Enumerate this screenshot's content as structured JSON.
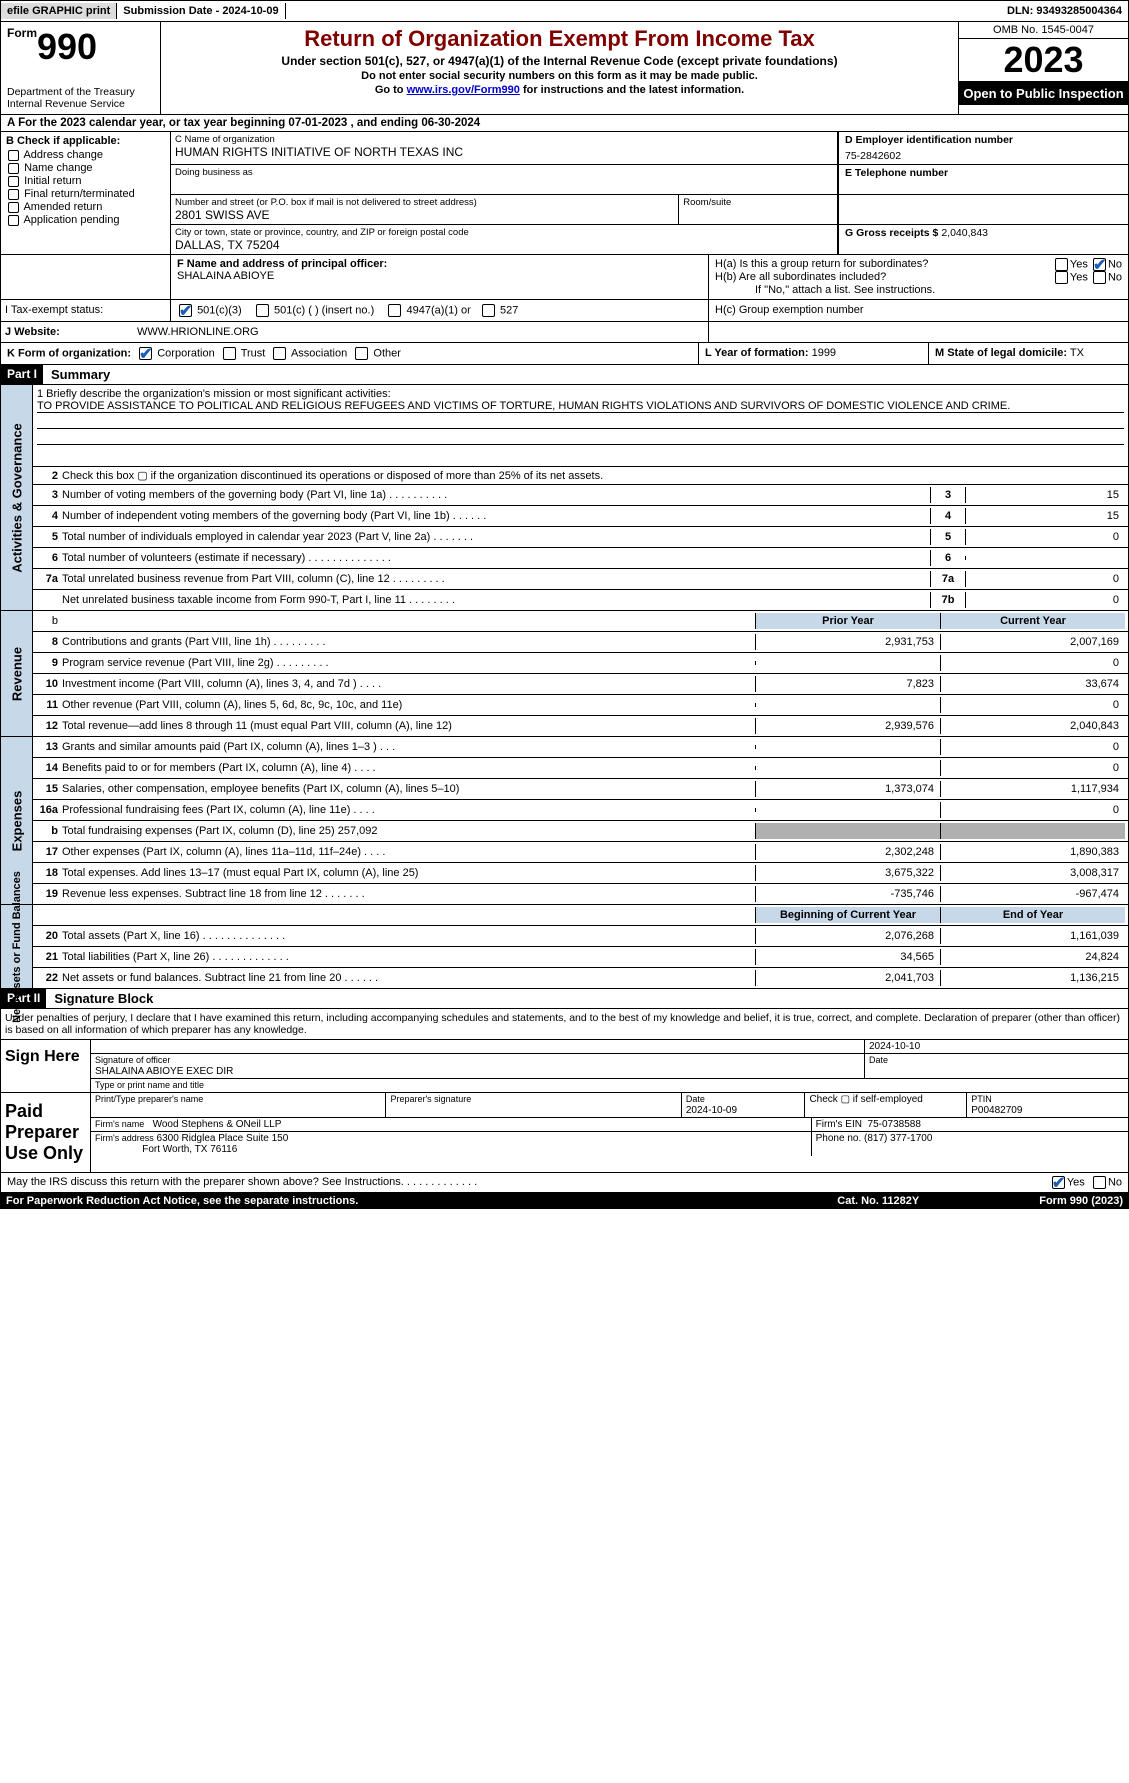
{
  "topbar": {
    "efile": "efile GRAPHIC print",
    "submission_label": "Submission Date - 2024-10-09",
    "dln_label": "DLN: 93493285004364"
  },
  "header": {
    "form_prefix": "Form",
    "form_number": "990",
    "department": "Department of the Treasury",
    "irs": "Internal Revenue Service",
    "title": "Return of Organization Exempt From Income Tax",
    "subtitle": "Under section 501(c), 527, or 4947(a)(1) of the Internal Revenue Code (except private foundations)",
    "note": "Do not enter social security numbers on this form as it may be made public.",
    "goto_prefix": "Go to ",
    "goto_link": "www.irs.gov/Form990",
    "goto_suffix": " for instructions and the latest information.",
    "omb": "OMB No. 1545-0047",
    "year": "2023",
    "inspection": "Open to Public Inspection"
  },
  "calendar": "A   For the 2023 calendar year, or tax year beginning 07-01-2023   , and ending 06-30-2024",
  "boxB": {
    "label": "B Check if applicable:",
    "items": [
      "Address change",
      "Name change",
      "Initial return",
      "Final return/terminated",
      "Amended return",
      "Application pending"
    ]
  },
  "boxC": {
    "name_label": "C Name of organization",
    "name": "HUMAN RIGHTS INITIATIVE OF NORTH TEXAS INC",
    "dba_label": "Doing business as",
    "street_label": "Number and street (or P.O. box if mail is not delivered to street address)",
    "street": "2801 SWISS AVE",
    "room_label": "Room/suite",
    "city_label": "City or town, state or province, country, and ZIP or foreign postal code",
    "city": "DALLAS, TX  75204"
  },
  "boxD": {
    "label": "D Employer identification number",
    "val": "75-2842602"
  },
  "boxE": {
    "label": "E Telephone number",
    "val": ""
  },
  "boxG": {
    "label": "G Gross receipts $",
    "val": "2,040,843"
  },
  "boxF": {
    "label": "F  Name and address of principal officer:",
    "val": "SHALAINA ABIOYE"
  },
  "boxH": {
    "a_label": "H(a)  Is this a group return for subordinates?",
    "b_label": "H(b)  Are all subordinates included?",
    "b_note": "If \"No,\" attach a list. See instructions.",
    "c_label": "H(c)  Group exemption number",
    "yes": "Yes",
    "no": "No"
  },
  "boxI": {
    "label": "I   Tax-exempt status:",
    "opts": [
      "501(c)(3)",
      "501(c) (  ) (insert no.)",
      "4947(a)(1) or",
      "527"
    ]
  },
  "boxJ": {
    "label": "J   Website:",
    "val": "WWW.HRIONLINE.ORG"
  },
  "boxK": {
    "label": "K Form of organization:",
    "opts": [
      "Corporation",
      "Trust",
      "Association",
      "Other"
    ]
  },
  "boxL": {
    "label": "L Year of formation:",
    "val": "1999"
  },
  "boxM": {
    "label": "M State of legal domicile:",
    "val": "TX"
  },
  "part1": {
    "label": "Part I",
    "title": "Summary"
  },
  "part2": {
    "label": "Part II",
    "title": "Signature Block"
  },
  "side_labels": {
    "ag": "Activities & Governance",
    "rev": "Revenue",
    "exp": "Expenses",
    "na": "Net Assets or Fund Balances"
  },
  "mission": {
    "q": "1   Briefly describe the organization's mission or most significant activities:",
    "text": "TO PROVIDE ASSISTANCE TO POLITICAL AND RELIGIOUS REFUGEES AND VICTIMS OF TORTURE, HUMAN RIGHTS VIOLATIONS AND SURVIVORS OF DOMESTIC VIOLENCE AND CRIME."
  },
  "lines_ag": [
    {
      "n": "2",
      "t": "Check this box ▢ if the organization discontinued its operations or disposed of more than 25% of its net assets."
    },
    {
      "n": "3",
      "t": "Number of voting members of the governing body (Part VI, line 1a)   .   .   .   .   .   .   .   .   .   .",
      "box": "3",
      "v": "15"
    },
    {
      "n": "4",
      "t": "Number of independent voting members of the governing body (Part VI, line 1b)   .   .   .   .   .   .",
      "box": "4",
      "v": "15"
    },
    {
      "n": "5",
      "t": "Total number of individuals employed in calendar year 2023 (Part V, line 2a)   .   .   .   .   .   .   .",
      "box": "5",
      "v": "0"
    },
    {
      "n": "6",
      "t": "Total number of volunteers (estimate if necessary)   .   .   .   .   .   .   .   .   .   .   .   .   .   .",
      "box": "6",
      "v": ""
    },
    {
      "n": "7a",
      "t": "Total unrelated business revenue from Part VIII, column (C), line 12   .   .   .   .   .   .   .   .   .",
      "box": "7a",
      "v": "0"
    },
    {
      "n": "",
      "t": "Net unrelated business taxable income from Form 990-T, Part I, line 11   .   .   .   .   .   .   .   .",
      "box": "7b",
      "v": "0"
    }
  ],
  "col_hdrs": {
    "prior": "Prior Year",
    "current": "Current Year",
    "beg": "Beginning of Current Year",
    "end": "End of Year"
  },
  "lines_rev": [
    {
      "n": "8",
      "t": "Contributions and grants (Part VIII, line 1h)   .   .   .   .   .   .   .   .   .",
      "p": "2,931,753",
      "c": "2,007,169"
    },
    {
      "n": "9",
      "t": "Program service revenue (Part VIII, line 2g)   .   .   .   .   .   .   .   .   .",
      "p": "",
      "c": "0"
    },
    {
      "n": "10",
      "t": "Investment income (Part VIII, column (A), lines 3, 4, and 7d )   .   .   .   .",
      "p": "7,823",
      "c": "33,674"
    },
    {
      "n": "11",
      "t": "Other revenue (Part VIII, column (A), lines 5, 6d, 8c, 9c, 10c, and 11e)",
      "p": "",
      "c": "0"
    },
    {
      "n": "12",
      "t": "Total revenue—add lines 8 through 11 (must equal Part VIII, column (A), line 12)",
      "p": "2,939,576",
      "c": "2,040,843"
    }
  ],
  "lines_exp": [
    {
      "n": "13",
      "t": "Grants and similar amounts paid (Part IX, column (A), lines 1–3 )  .   .   .",
      "p": "",
      "c": "0"
    },
    {
      "n": "14",
      "t": "Benefits paid to or for members (Part IX, column (A), line 4)  .   .   .   .",
      "p": "",
      "c": "0"
    },
    {
      "n": "15",
      "t": "Salaries, other compensation, employee benefits (Part IX, column (A), lines 5–10)",
      "p": "1,373,074",
      "c": "1,117,934"
    },
    {
      "n": "16a",
      "t": "Professional fundraising fees (Part IX, column (A), line 11e)  .   .   .   .",
      "p": "",
      "c": "0"
    },
    {
      "n": "b",
      "t": "Total fundraising expenses (Part IX, column (D), line 25) 257,092",
      "p": "GRAY",
      "c": "GRAY"
    },
    {
      "n": "17",
      "t": "Other expenses (Part IX, column (A), lines 11a–11d, 11f–24e)  .   .   .   .",
      "p": "2,302,248",
      "c": "1,890,383"
    },
    {
      "n": "18",
      "t": "Total expenses. Add lines 13–17 (must equal Part IX, column (A), line 25)",
      "p": "3,675,322",
      "c": "3,008,317"
    },
    {
      "n": "19",
      "t": "Revenue less expenses. Subtract line 18 from line 12  .   .   .   .   .   .   .",
      "p": "-735,746",
      "c": "-967,474"
    }
  ],
  "lines_na": [
    {
      "n": "20",
      "t": "Total assets (Part X, line 16)   .   .   .   .   .   .   .   .   .   .   .   .   .   .",
      "p": "2,076,268",
      "c": "1,161,039"
    },
    {
      "n": "21",
      "t": "Total liabilities (Part X, line 26)   .   .   .   .   .   .   .   .   .   .   .   .   .",
      "p": "34,565",
      "c": "24,824"
    },
    {
      "n": "22",
      "t": "Net assets or fund balances. Subtract line 21 from line 20  .   .   .   .   .   .",
      "p": "2,041,703",
      "c": "1,136,215"
    }
  ],
  "sig_text": "Under penalties of perjury, I declare that I have examined this return, including accompanying schedules and statements, and to the best of my knowledge and belief, it is true, correct, and complete. Declaration of preparer (other than officer) is based on all information of which preparer has any knowledge.",
  "sign_here": {
    "label": "Sign Here",
    "sig_label": "Signature of officer",
    "name_title": "SHALAINA ABIOYE  EXEC DIR",
    "type_label": "Type or print name and title",
    "date": "2024-10-10",
    "date_label": "Date"
  },
  "paid_prep": {
    "label": "Paid Preparer Use Only",
    "name_label": "Print/Type preparer's name",
    "sig_label": "Preparer's signature",
    "date_label": "Date",
    "date": "2024-10-09",
    "check_label": "Check ▢ if self-employed",
    "ptin_label": "PTIN",
    "ptin": "P00482709",
    "firm_name_label": "Firm's name",
    "firm_name": "Wood Stephens & ONeil LLP",
    "firm_ein_label": "Firm's EIN",
    "firm_ein": "75-0738588",
    "firm_addr_label": "Firm's address",
    "firm_addr1": "6300 Ridglea Place Suite 150",
    "firm_addr2": "Fort Worth, TX  76116",
    "phone_label": "Phone no.",
    "phone": "(817) 377-1700"
  },
  "discuss": {
    "q": "May the IRS discuss this return with the preparer shown above? See Instructions.   .   .   .   .   .   .   .   .   .   .   .   .",
    "yes": "Yes",
    "no": "No"
  },
  "footer": {
    "left": "For Paperwork Reduction Act Notice, see the separate instructions.",
    "mid": "Cat. No. 11282Y",
    "right": "Form 990 (2023)"
  }
}
